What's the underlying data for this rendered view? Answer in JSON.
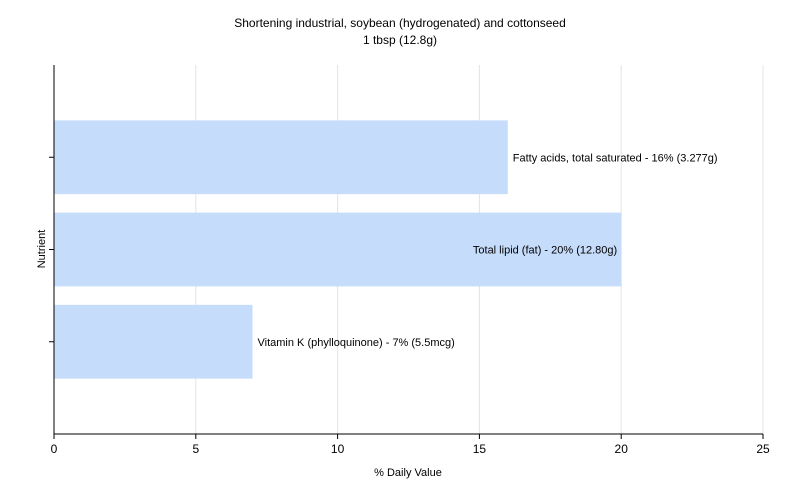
{
  "chart_data": {
    "type": "bar",
    "orientation": "horizontal",
    "title": "Shortening industrial, soybean (hydrogenated) and cottonseed",
    "subtitle": "1 tbsp (12.8g)",
    "xlabel": "% Daily Value",
    "ylabel": "Nutrient",
    "xlim": [
      0,
      25
    ],
    "xticks": [
      0,
      5,
      10,
      15,
      20,
      25
    ],
    "grid": "vertical",
    "bar_color": "#c6dcfb",
    "categories": [
      "Fatty acids, total saturated",
      "Total lipid (fat)",
      "Vitamin K (phylloquinone)"
    ],
    "values": [
      16,
      20,
      7
    ],
    "labels": [
      "Fatty acids, total saturated - 16% (3.277g)",
      "Total lipid (fat) - 20% (12.80g)",
      "Vitamin K (phylloquinone) - 7% (5.5mcg)"
    ]
  }
}
